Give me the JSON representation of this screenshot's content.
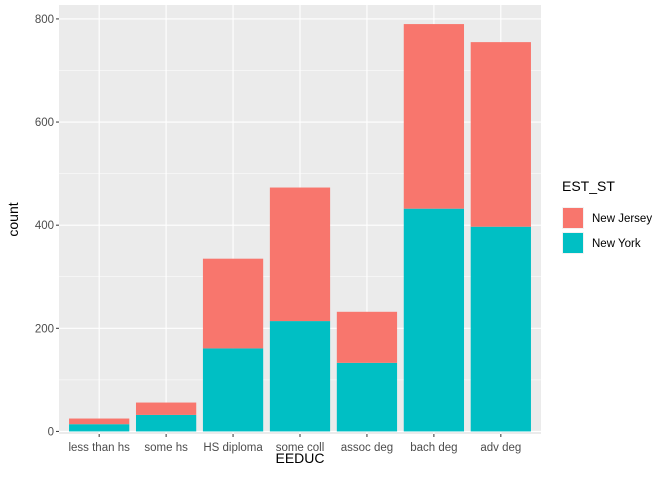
{
  "chart_data": {
    "type": "bar",
    "stacked": true,
    "title": "",
    "xlabel": "EEDUC",
    "ylabel": "count",
    "categories": [
      "less than hs",
      "some hs",
      "HS diploma",
      "some coll",
      "assoc deg",
      "bach deg",
      "adv deg"
    ],
    "series": [
      {
        "name": "New York",
        "values": [
          14,
          32,
          161,
          214,
          133,
          432,
          397
        ],
        "color": "#00BFC4"
      },
      {
        "name": "New Jersey",
        "values": [
          11,
          24,
          174,
          259,
          99,
          358,
          358
        ],
        "color": "#F8766D"
      }
    ],
    "ylim": [
      -5,
      827
    ],
    "yticks": [
      0,
      200,
      400,
      600,
      800
    ],
    "grid": true,
    "panel_background": "#EBEBEB",
    "legend": {
      "title": "EST_ST",
      "position": "right",
      "entries": [
        "New Jersey",
        "New York"
      ]
    }
  }
}
